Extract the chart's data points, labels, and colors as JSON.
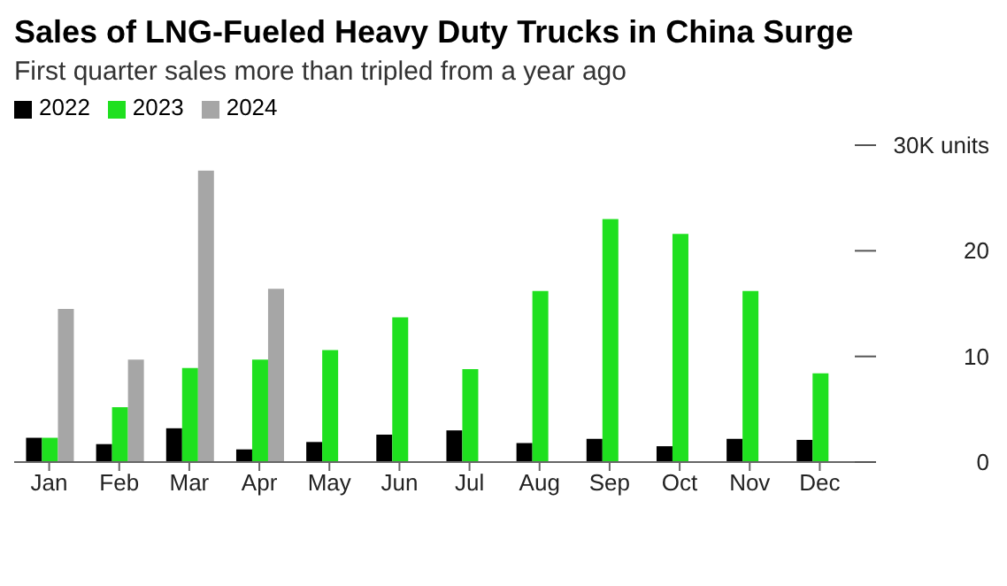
{
  "chart_data": {
    "type": "bar",
    "title": "Sales of LNG-Fueled Heavy Duty Trucks in China Surge",
    "subtitle": "First quarter sales more than tripled from a year ago",
    "categories": [
      "Jan",
      "Feb",
      "Mar",
      "Apr",
      "May",
      "Jun",
      "Jul",
      "Aug",
      "Sep",
      "Oct",
      "Nov",
      "Dec"
    ],
    "series": [
      {
        "name": "2022",
        "color": "#000000",
        "values": [
          2.3,
          1.7,
          3.2,
          1.2,
          1.9,
          2.6,
          3.0,
          1.8,
          2.2,
          1.5,
          2.2,
          2.1
        ]
      },
      {
        "name": "2023",
        "color": "#1fe01f",
        "values": [
          2.3,
          5.2,
          8.9,
          9.7,
          10.6,
          13.7,
          8.8,
          16.2,
          23.0,
          21.6,
          16.2,
          8.4
        ]
      },
      {
        "name": "2024",
        "color": "#a6a6a6",
        "values": [
          14.5,
          9.7,
          27.6,
          16.4,
          null,
          null,
          null,
          null,
          null,
          null,
          null,
          null
        ]
      }
    ],
    "ylim": [
      0,
      30
    ],
    "yticks": [
      0,
      10,
      20,
      {
        "value": 30,
        "label": "30K units"
      }
    ],
    "legend": "top left"
  }
}
